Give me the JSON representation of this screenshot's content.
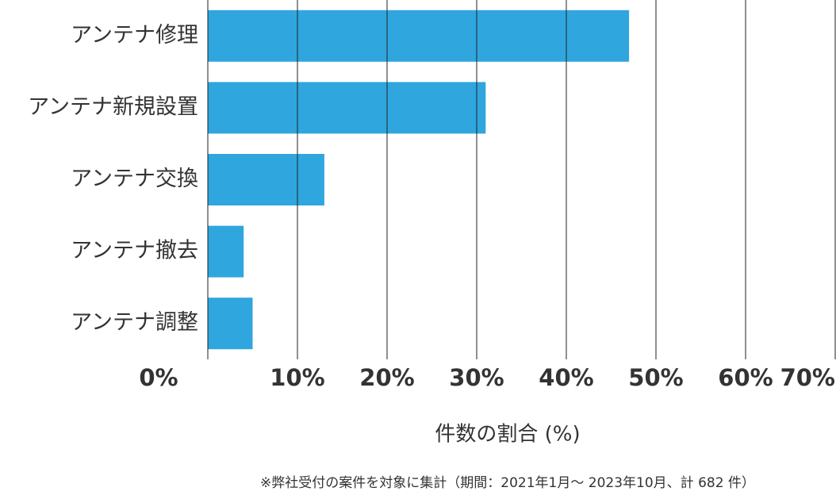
{
  "chart_data": {
    "type": "hbar",
    "categories": [
      "アンテナ修理",
      "アンテナ新規設置",
      "アンテナ交換",
      "アンテナ撤去",
      "アンテナ調整"
    ],
    "values": [
      47,
      31,
      13,
      4,
      5
    ],
    "color": "#2fa6de",
    "xlabel": "件数の割合 (%)",
    "xlim": [
      0,
      70
    ],
    "xticks": [
      {
        "value": 0,
        "label": "0%"
      },
      {
        "value": 10,
        "label": "10%"
      },
      {
        "value": 20,
        "label": "20%"
      },
      {
        "value": 30,
        "label": "30%"
      },
      {
        "value": 40,
        "label": "40%"
      },
      {
        "value": 50,
        "label": "50%"
      },
      {
        "value": 60,
        "label": "60%"
      },
      {
        "value": 70,
        "label": "70%"
      }
    ],
    "grid": true,
    "footnote": "※弊社受付の案件を対象に集計（期間：2021年1月～ 2023年10月、計 682 件）"
  }
}
